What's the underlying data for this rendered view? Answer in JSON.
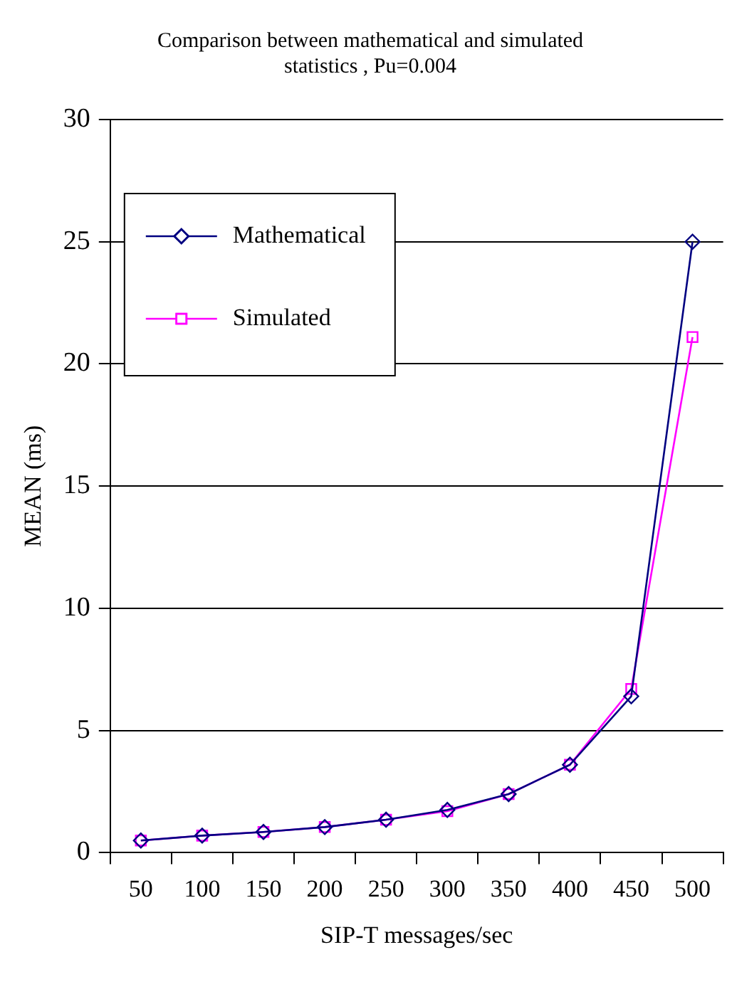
{
  "chart_data": {
    "type": "line",
    "title": "Comparison between mathematical and simulated statistics , Pu=0.004",
    "xlabel": "SIP-T messages/sec",
    "ylabel": "MEAN (ms)",
    "categories": [
      "50",
      "100",
      "150",
      "200",
      "250",
      "300",
      "350",
      "400",
      "450",
      "500"
    ],
    "series": [
      {
        "name": "Mathematical",
        "color": "#000080",
        "marker": "diamond",
        "values": [
          0.5,
          0.7,
          0.85,
          1.05,
          1.35,
          1.75,
          2.4,
          3.6,
          6.4,
          25
        ]
      },
      {
        "name": "Simulated",
        "color": "#ff00ff",
        "marker": "square",
        "values": [
          0.5,
          0.7,
          0.85,
          1.05,
          1.35,
          1.7,
          2.4,
          3.6,
          6.7,
          21.1
        ]
      }
    ],
    "ylim": [
      0,
      30
    ],
    "yticks": [
      0,
      5,
      10,
      15,
      20,
      25,
      30
    ],
    "grid": "y",
    "legend": "top left",
    "line_style": "solid"
  }
}
